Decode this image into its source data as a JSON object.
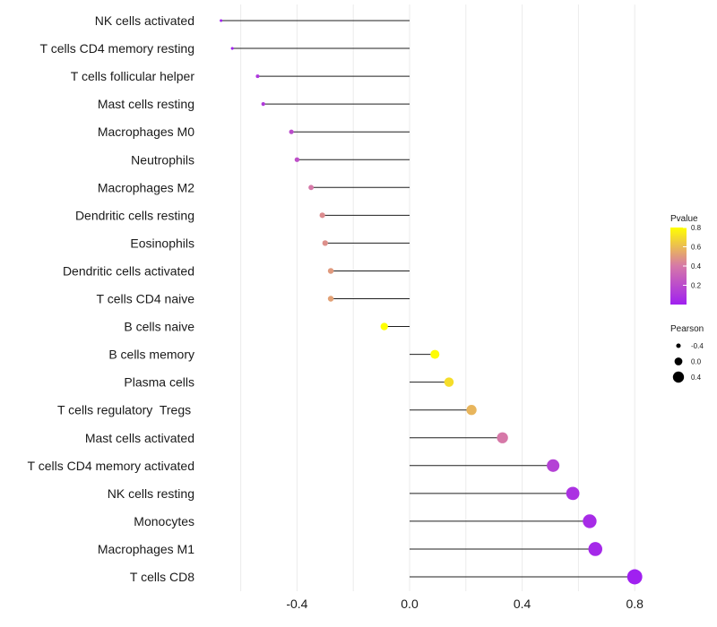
{
  "chart_data": {
    "type": "lollipop",
    "title": "",
    "xlabel": "",
    "ylabel": "",
    "xlim": [
      -0.68,
      0.8
    ],
    "xticks": [
      -0.4,
      0.0,
      0.4,
      0.8
    ],
    "xtick_labels": [
      "-0.4",
      "0.0",
      "0.4",
      "0.8"
    ],
    "grid": true,
    "baseline": 0.0,
    "series": [
      {
        "name": "NK cells activated",
        "pearson": -0.67,
        "pvalue": 0.0
      },
      {
        "name": "T cells CD4 memory resting",
        "pearson": -0.63,
        "pvalue": 0.01
      },
      {
        "name": "T cells follicular helper",
        "pearson": -0.54,
        "pvalue": 0.1
      },
      {
        "name": "Mast cells resting",
        "pearson": -0.52,
        "pvalue": 0.12
      },
      {
        "name": "Macrophages M0",
        "pearson": -0.42,
        "pvalue": 0.2
      },
      {
        "name": "Neutrophils",
        "pearson": -0.4,
        "pvalue": 0.22
      },
      {
        "name": "Macrophages M2",
        "pearson": -0.35,
        "pvalue": 0.4
      },
      {
        "name": "Dendritic cells resting",
        "pearson": -0.31,
        "pvalue": 0.46
      },
      {
        "name": "Eosinophils",
        "pearson": -0.3,
        "pvalue": 0.47
      },
      {
        "name": "Dendritic cells activated",
        "pearson": -0.28,
        "pvalue": 0.5
      },
      {
        "name": "T cells CD4 naive",
        "pearson": -0.28,
        "pvalue": 0.52
      },
      {
        "name": "B cells naive",
        "pearson": -0.09,
        "pvalue": 0.8
      },
      {
        "name": "B cells memory",
        "pearson": 0.09,
        "pvalue": 0.79
      },
      {
        "name": "Plasma cells",
        "pearson": 0.14,
        "pvalue": 0.7
      },
      {
        "name": "T cells regulatory  Tregs ",
        "pearson": 0.22,
        "pvalue": 0.58
      },
      {
        "name": "Mast cells activated",
        "pearson": 0.33,
        "pvalue": 0.4
      },
      {
        "name": "T cells CD4 memory activated",
        "pearson": 0.51,
        "pvalue": 0.15
      },
      {
        "name": "NK cells resting",
        "pearson": 0.58,
        "pvalue": 0.08
      },
      {
        "name": "Monocytes",
        "pearson": 0.64,
        "pvalue": 0.05
      },
      {
        "name": "Macrophages M1",
        "pearson": 0.66,
        "pvalue": 0.04
      },
      {
        "name": "T cells CD8",
        "pearson": 0.8,
        "pvalue": 0.0
      }
    ],
    "legend": {
      "placement": "right",
      "color": {
        "title": "Pvalue",
        "ticks": [
          0.8,
          0.6,
          0.4,
          0.2
        ],
        "tick_labels": [
          "0.8",
          "0.6",
          "0.4",
          "0.2"
        ],
        "range": [
          0.0,
          0.8
        ],
        "low_color": "#a020f0",
        "mid_color": "#d678a8",
        "high_color": "#ffff00"
      },
      "size": {
        "title": "Pearson",
        "values": [
          -0.4,
          0.0,
          0.4
        ],
        "labels": [
          "-0.4",
          "0.0",
          "0.4"
        ]
      }
    }
  }
}
